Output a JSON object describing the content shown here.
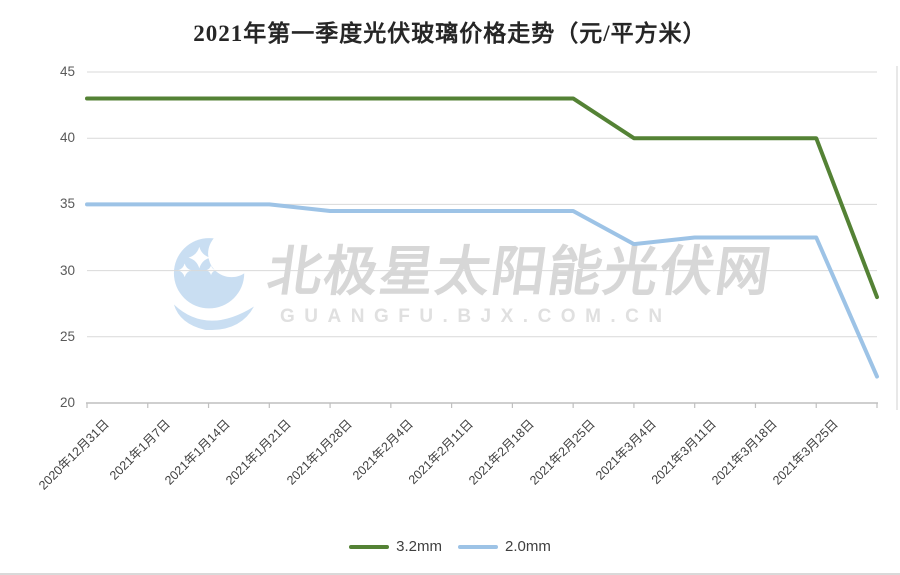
{
  "title": "2021年第一季度光伏玻璃价格走势（元/平方米）",
  "watermark": {
    "cn": "北极星太阳能光伏网",
    "en": "GUANGFU.BJX.COM.CN",
    "logo": "moon-sparkles-logo",
    "logo_color": "#c9def2",
    "cn_color": "#d7d7d7",
    "en_color": "#e0e0e0"
  },
  "colors": {
    "grid": "#d9d9d9",
    "axis": "#bfbfbf",
    "y_label": "#595959",
    "x_label": "#404040",
    "title": "#262626",
    "legend_text": "#404040"
  },
  "chart_data": {
    "type": "line",
    "title": "2021年第一季度光伏玻璃价格走势（元/平方米）",
    "categories": [
      "2020年12月31日",
      "2021年1月7日",
      "2021年1月14日",
      "2021年1月21日",
      "2021年1月28日",
      "2021年2月4日",
      "2021年2月11日",
      "2021年2月18日",
      "2021年2月25日",
      "2021年3月4日",
      "2021年3月11日",
      "2021年3月18日",
      "2021年3月25日",
      ""
    ],
    "series": [
      {
        "name": "3.2mm",
        "color": "#548235",
        "values": [
          43,
          43,
          43,
          43,
          43,
          43,
          43,
          43,
          43,
          40,
          40,
          40,
          40,
          28
        ]
      },
      {
        "name": "2.0mm",
        "color": "#9DC3E6",
        "values": [
          35,
          35,
          35,
          35,
          34.5,
          34.5,
          34.5,
          34.5,
          34.5,
          32,
          32.5,
          32.5,
          32.5,
          22
        ]
      }
    ],
    "xlabel": "",
    "ylabel": "",
    "ylim": [
      20,
      45
    ],
    "ytick_step": 5,
    "ytick_labels": [
      "45",
      "40",
      "35",
      "30",
      "25",
      "20"
    ],
    "grid": "horizontal",
    "legend_position": "bottom"
  }
}
